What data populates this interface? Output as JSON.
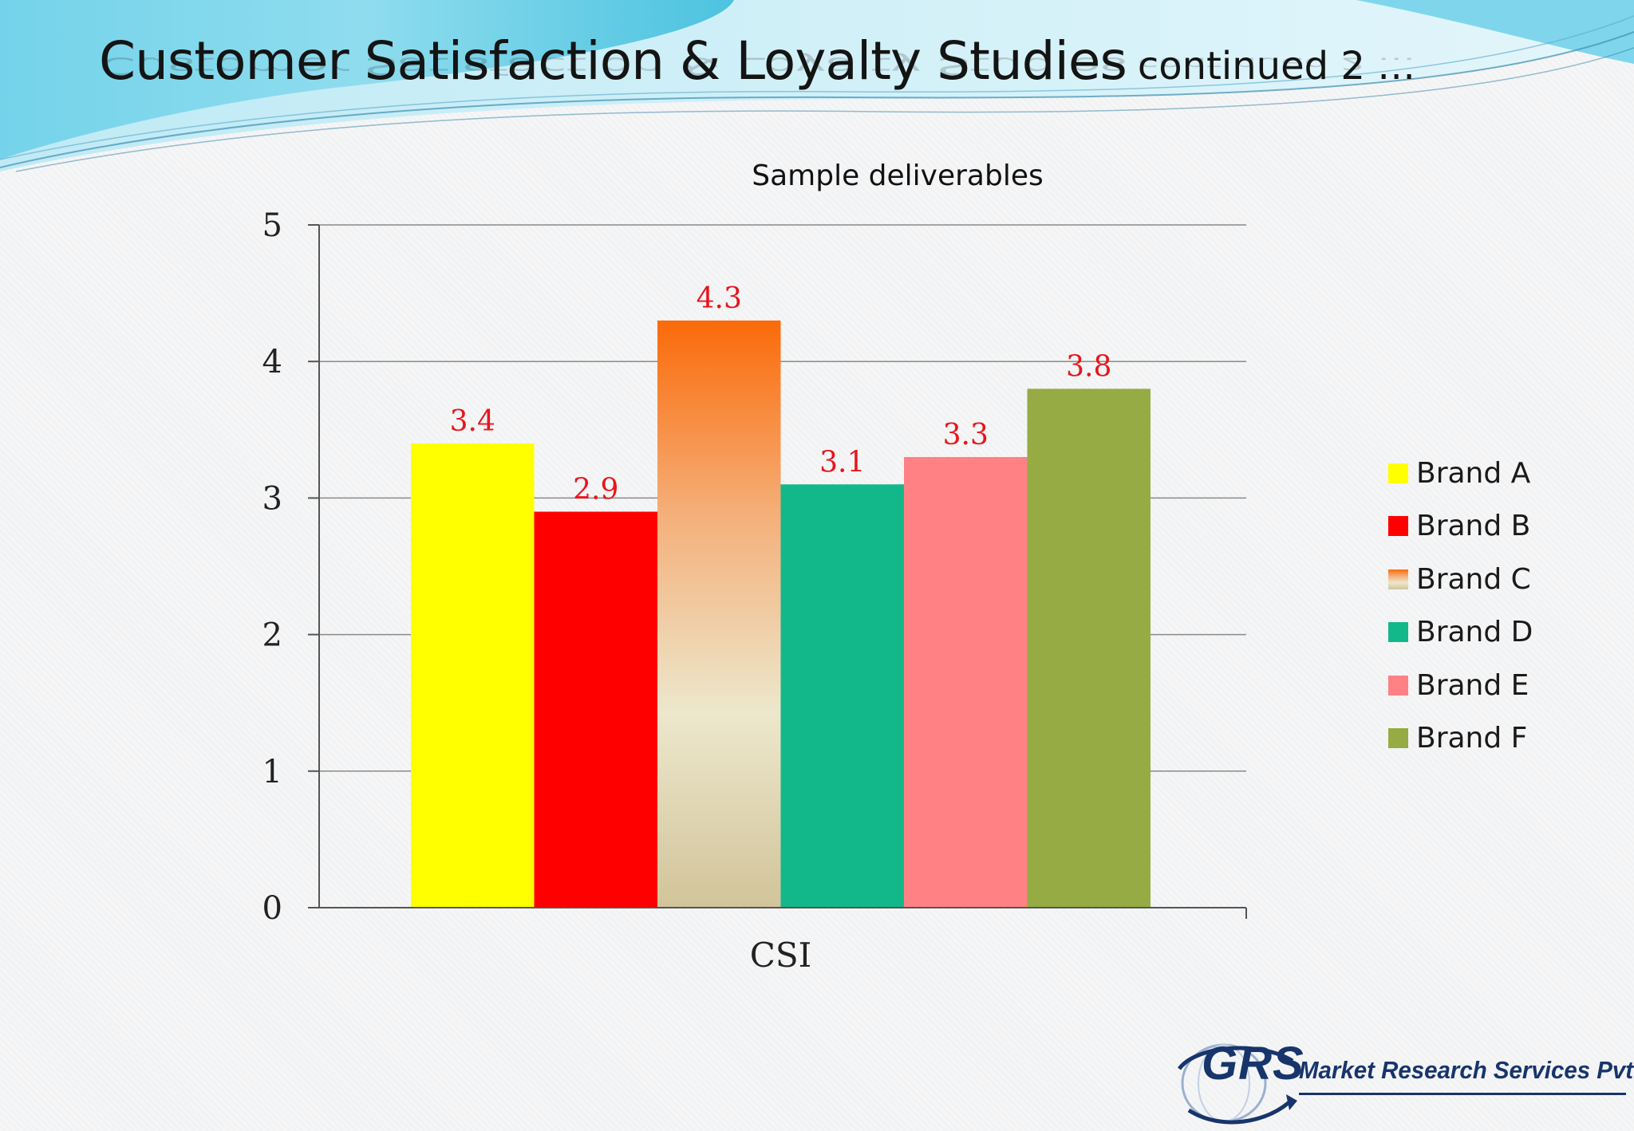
{
  "slide": {
    "title_main": "Customer Satisfaction & Loyalty Studies",
    "title_continued": "continued 2 …",
    "subtitle": "Sample deliverables",
    "logo_mark": "GRS",
    "logo_company": "Market Research Services Pvt. Ltd."
  },
  "chart_data": {
    "type": "bar",
    "title": "",
    "categories": [
      "CSI"
    ],
    "xlabel": "",
    "ylabel": "",
    "ylim": [
      0,
      5
    ],
    "yticks": [
      "0",
      "1",
      "2",
      "3",
      "4",
      "5"
    ],
    "grid": true,
    "legend_position": "right",
    "series": [
      {
        "name": "Brand A",
        "values": [
          3.4
        ],
        "label": "3.4",
        "color": "#ffff00"
      },
      {
        "name": "Brand B",
        "values": [
          2.9
        ],
        "label": "2.9",
        "color": "#ff0000"
      },
      {
        "name": "Brand C",
        "values": [
          4.3
        ],
        "label": "4.3",
        "color": "#f9731c",
        "gradient": [
          "#fb6a0a",
          "#f4b07a",
          "#ede7cc",
          "#d2c49a"
        ]
      },
      {
        "name": "Brand D",
        "values": [
          3.1
        ],
        "label": "3.1",
        "color": "#13b88a"
      },
      {
        "name": "Brand E",
        "values": [
          3.3
        ],
        "label": "3.3",
        "color": "#ff8183"
      },
      {
        "name": "Brand F",
        "values": [
          3.8
        ],
        "label": "3.8",
        "color": "#96ab43"
      }
    ]
  }
}
